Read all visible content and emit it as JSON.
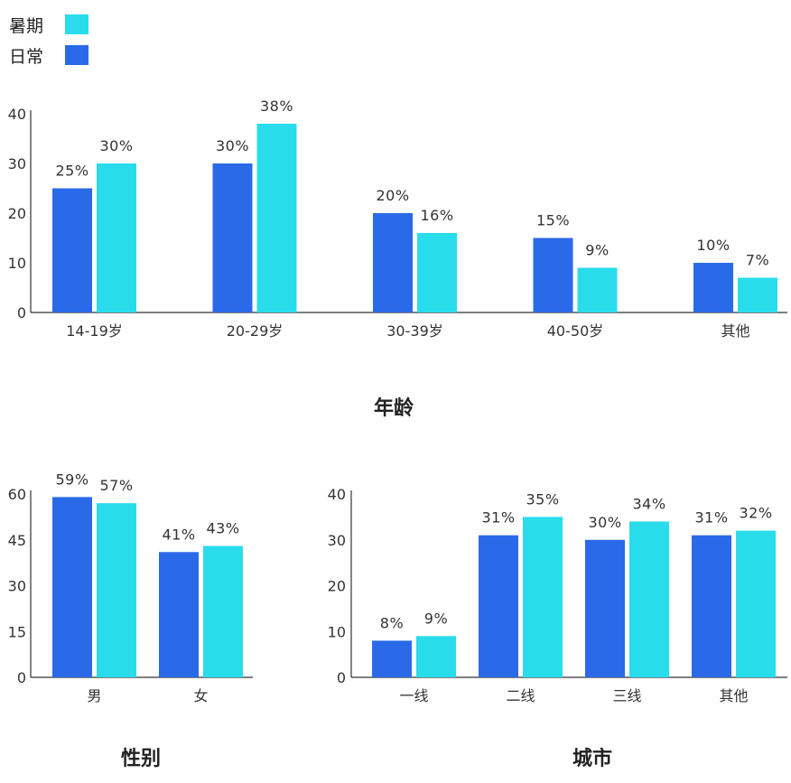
{
  "legend": {
    "summer_label": "暑期",
    "daily_label": "日常"
  },
  "colors": {
    "summer": "#29dcec",
    "daily": "#2a6ae8",
    "axis": "#333333"
  },
  "chart_data": [
    {
      "type": "bar",
      "title": "年龄",
      "categories": [
        "14-19岁",
        "20-29岁",
        "30-39岁",
        "40-50岁",
        "其他"
      ],
      "yticks": [
        0,
        10,
        20,
        30,
        40
      ],
      "ylim": [
        0,
        40
      ],
      "series": [
        {
          "name": "日常",
          "values": [
            25,
            30,
            20,
            15,
            10
          ],
          "labels": [
            "25%",
            "30%",
            "20%",
            "15%",
            "10%"
          ]
        },
        {
          "name": "暑期",
          "values": [
            30,
            38,
            16,
            9,
            7
          ],
          "labels": [
            "30%",
            "38%",
            "16%",
            "9%",
            "7%"
          ]
        }
      ]
    },
    {
      "type": "bar",
      "title": "性别",
      "categories": [
        "男",
        "女"
      ],
      "yticks": [
        0,
        15,
        30,
        45,
        60
      ],
      "ylim": [
        0,
        60
      ],
      "series": [
        {
          "name": "日常",
          "values": [
            59,
            41
          ],
          "labels": [
            "59%",
            "41%"
          ]
        },
        {
          "name": "暑期",
          "values": [
            57,
            43
          ],
          "labels": [
            "57%",
            "43%"
          ]
        }
      ]
    },
    {
      "type": "bar",
      "title": "城市",
      "categories": [
        "一线",
        "二线",
        "三线",
        "其他"
      ],
      "yticks": [
        0,
        10,
        20,
        30,
        40
      ],
      "ylim": [
        0,
        40
      ],
      "series": [
        {
          "name": "日常",
          "values": [
            8,
            31,
            30,
            31
          ],
          "labels": [
            "8%",
            "31%",
            "30%",
            "31%"
          ]
        },
        {
          "name": "暑期",
          "values": [
            9,
            35,
            34,
            32
          ],
          "labels": [
            "9%",
            "35%",
            "34%",
            "32%"
          ]
        }
      ]
    }
  ]
}
